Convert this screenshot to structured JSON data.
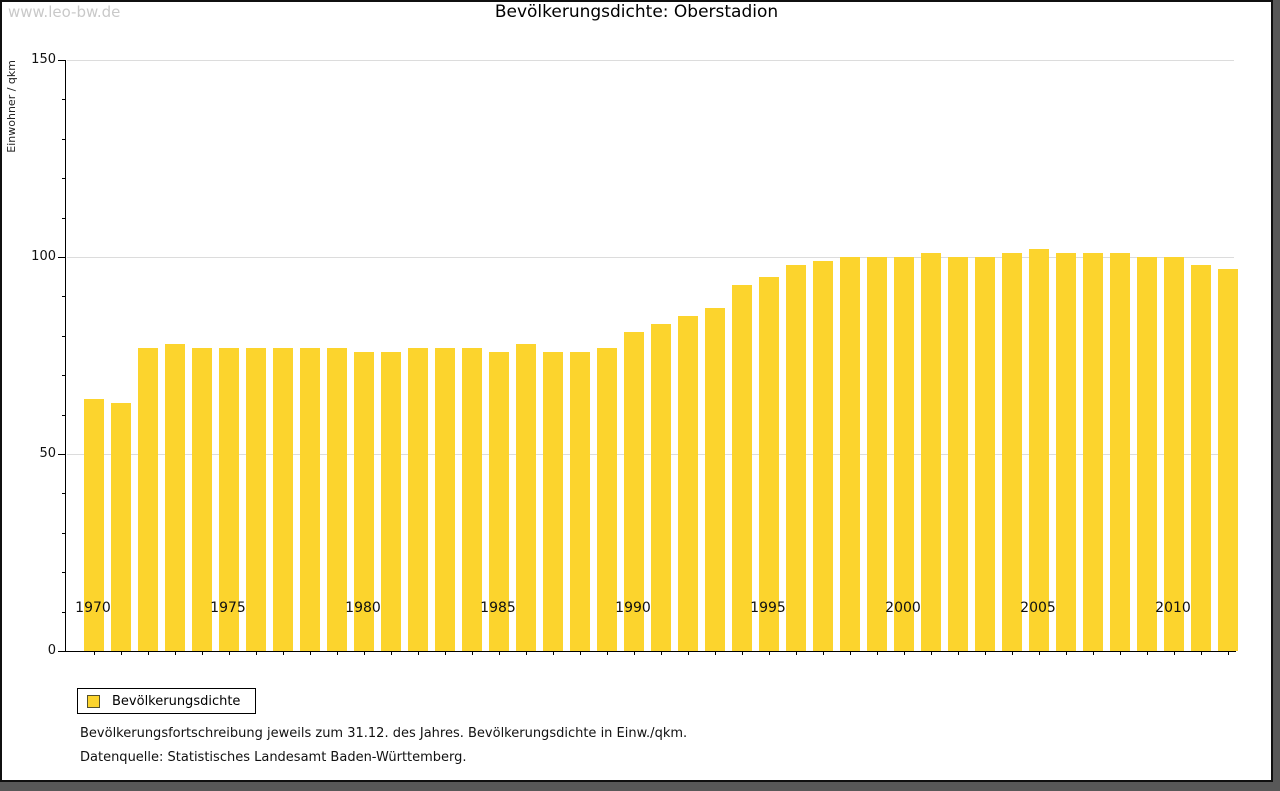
{
  "watermark": "www.leo-bw.de",
  "footer": {
    "line1": "Bevölkerungsfortschreibung jeweils zum 31.12. des Jahres. Bevölkerungsdichte in Einw./qkm.",
    "line2": "Datenquelle: Statistisches Landesamt Baden-Württemberg."
  },
  "colors": {
    "bar": "#FCD42D",
    "gridline": "#dcdcdc",
    "axis": "#000000",
    "watermark": "#c9c9c9",
    "frame_shadow": "#585858"
  },
  "chart_data": {
    "type": "bar",
    "title": "Bevölkerungsdichte: Oberstadion",
    "xlabel": "",
    "ylabel": "Einwohner / qkm",
    "ylim": [
      0,
      150
    ],
    "ytick_major": [
      0,
      50,
      100,
      150
    ],
    "ytick_minor_step": 10,
    "grid": "horizontal lines at 50, 100, 150",
    "x_major_tick_labels": [
      "1970",
      "1975",
      "1980",
      "1985",
      "1990",
      "1995",
      "2000",
      "2005",
      "2010"
    ],
    "legend": {
      "position": "bottom-left",
      "entries": [
        {
          "label": "Bevölkerungsdichte",
          "color": "#FCD42D"
        }
      ]
    },
    "categories": [
      1970,
      1971,
      1972,
      1973,
      1974,
      1975,
      1976,
      1977,
      1978,
      1979,
      1980,
      1981,
      1982,
      1983,
      1984,
      1985,
      1986,
      1987,
      1988,
      1989,
      1990,
      1991,
      1992,
      1993,
      1994,
      1995,
      1996,
      1997,
      1998,
      1999,
      2000,
      2001,
      2002,
      2003,
      2004,
      2005,
      2006,
      2007,
      2008,
      2009,
      2010,
      2011,
      2012
    ],
    "values": [
      64,
      63,
      77,
      78,
      77,
      77,
      77,
      77,
      77,
      77,
      76,
      76,
      77,
      77,
      77,
      76,
      78,
      76,
      76,
      77,
      81,
      83,
      85,
      87,
      93,
      95,
      98,
      99,
      100,
      100,
      100,
      101,
      100,
      100,
      101,
      102,
      101,
      101,
      101,
      100,
      100,
      98,
      97
    ]
  }
}
